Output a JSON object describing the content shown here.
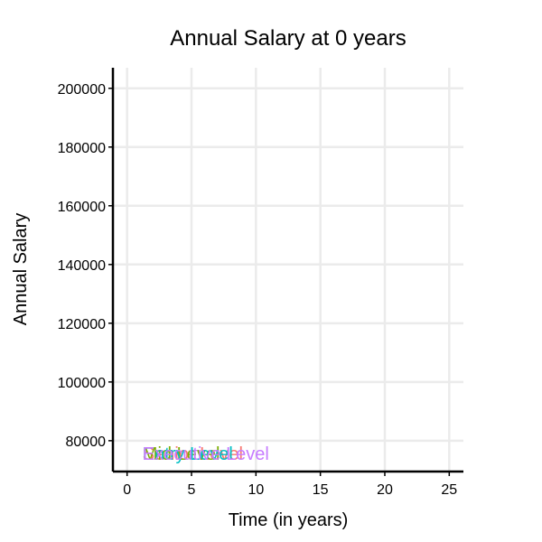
{
  "chart_data": {
    "type": "line",
    "title": "Annual Salary at 0 years",
    "xlabel": "Time (in years)",
    "ylabel": "Annual Salary",
    "xlim": [
      -1.1,
      26.1
    ],
    "ylim": [
      69500,
      207000
    ],
    "x_ticks": [
      0,
      5,
      10,
      15,
      20,
      25
    ],
    "y_ticks": [
      80000,
      100000,
      120000,
      140000,
      160000,
      180000,
      200000
    ],
    "grid": true,
    "legend": "none",
    "series": [
      {
        "name": "Senior Level",
        "color": "#F8766D",
        "x": [
          0
        ],
        "y": [
          72000
        ],
        "label_x": 1.2
      },
      {
        "name": "Mid Level",
        "color": "#7CAE00",
        "x": [
          0
        ],
        "y": [
          72000
        ],
        "label_x": 1.2
      },
      {
        "name": "Entry Level",
        "color": "#00BFC4",
        "x": [
          0
        ],
        "y": [
          72000
        ],
        "label_x": 1.2
      },
      {
        "name": "Executive Level",
        "color": "#C77CFF",
        "x": [
          0
        ],
        "y": [
          72000
        ],
        "label_x": 1.2
      }
    ]
  }
}
